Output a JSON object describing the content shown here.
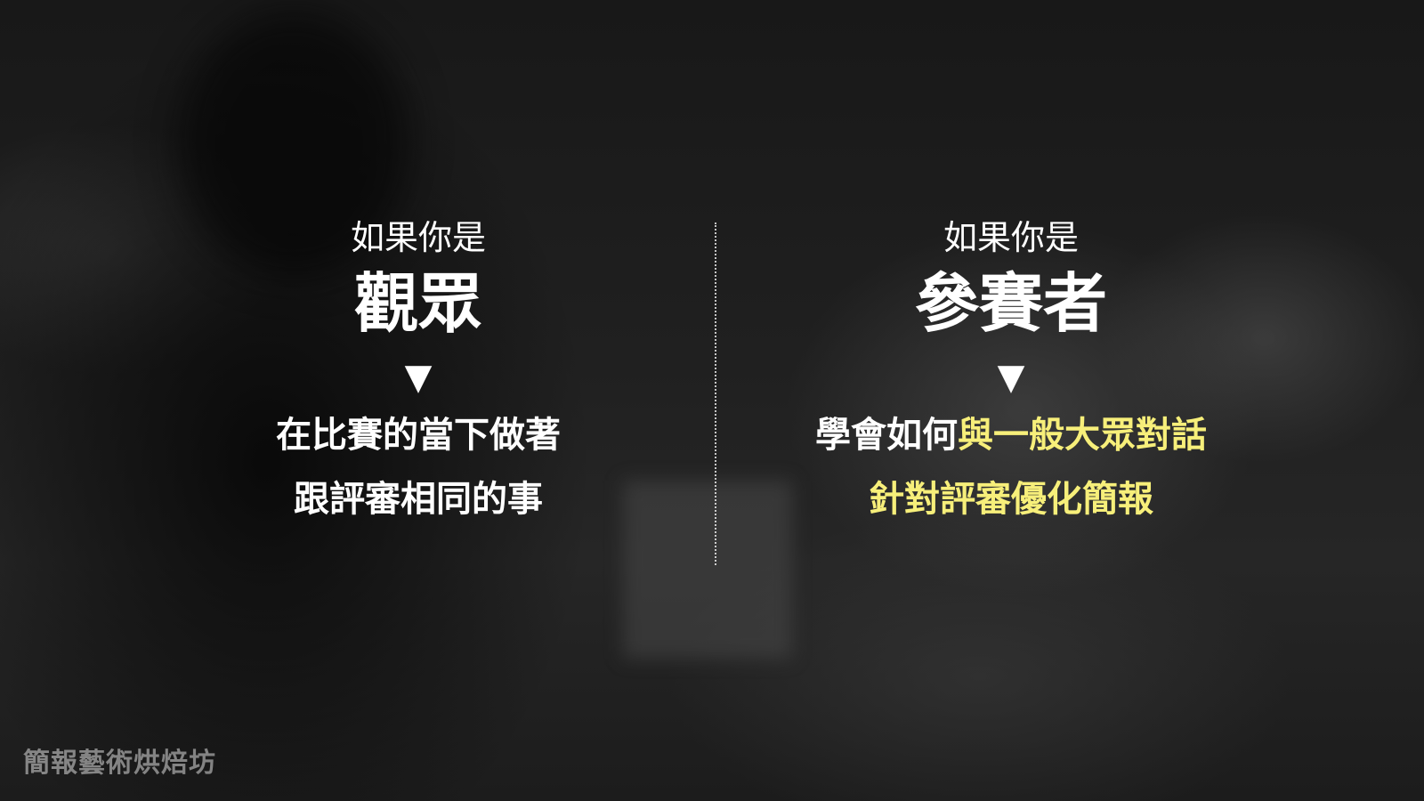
{
  "left": {
    "intro": "如果你是",
    "headline": "觀眾",
    "arrow": "▼",
    "line1": "在比賽的當下做著",
    "line2": "跟評審相同的事"
  },
  "right": {
    "intro": "如果你是",
    "headline": "參賽者",
    "arrow": "▼",
    "line1_plain": "學會如何",
    "line1_highlight": "與一般大眾對話",
    "line2_highlight": "針對評審優化簡報"
  },
  "watermark": "簡報藝術烘焙坊",
  "colors": {
    "text": "#ffffff",
    "highlight": "#f7ef7a",
    "background": "#1c1c1c"
  }
}
